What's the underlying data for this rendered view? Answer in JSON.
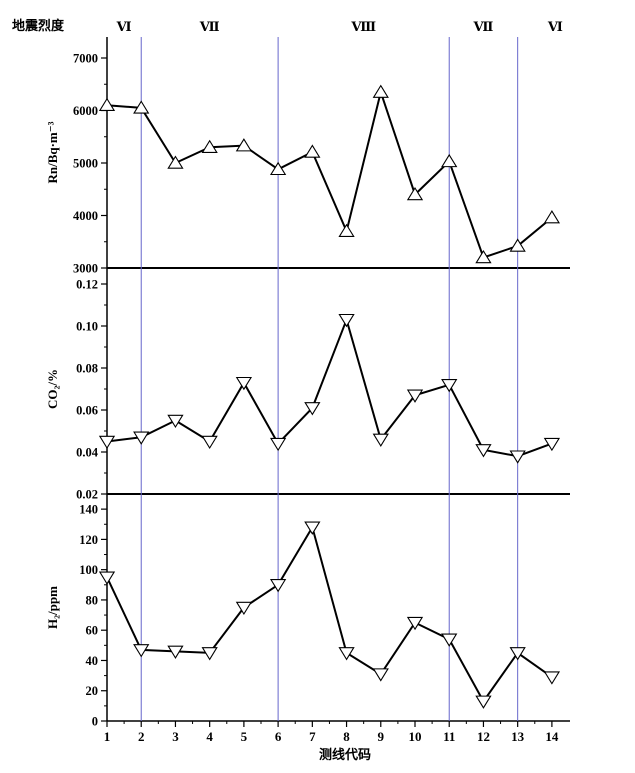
{
  "chart_data": [
    {
      "type": "line",
      "panel": "top",
      "ylabel": "Rn/Bq·m⁻³",
      "ylim": [
        3000,
        7400
      ],
      "yticks": [
        3000,
        4000,
        5000,
        6000,
        7000
      ],
      "marker": "triangle-up",
      "x": [
        1,
        2,
        3,
        4,
        5,
        6,
        7,
        8,
        9,
        10,
        11,
        12,
        13,
        14
      ],
      "values": [
        6100,
        6050,
        5000,
        5300,
        5330,
        4880,
        5210,
        3700,
        6350,
        4400,
        5030,
        3200,
        3420,
        3960
      ]
    },
    {
      "type": "line",
      "panel": "middle",
      "ylabel": "CO₂/%",
      "ylim": [
        0.02,
        0.12
      ],
      "yticks": [
        "0.02",
        "0.04",
        "0.06",
        "0.08",
        "0.10",
        "0.12"
      ],
      "marker": "triangle-down",
      "x": [
        1,
        2,
        3,
        4,
        5,
        6,
        7,
        8,
        9,
        10,
        11,
        12,
        13,
        14
      ],
      "values": [
        0.045,
        0.047,
        0.055,
        0.045,
        0.073,
        0.044,
        0.061,
        0.103,
        0.046,
        0.067,
        0.072,
        0.041,
        0.038,
        0.044
      ]
    },
    {
      "type": "line",
      "panel": "bottom",
      "ylabel": "H₂/ppm",
      "ylim": [
        0,
        150
      ],
      "yticks": [
        0,
        20,
        40,
        60,
        80,
        100,
        120,
        140
      ],
      "marker": "triangle-down",
      "x": [
        1,
        2,
        3,
        4,
        5,
        6,
        7,
        8,
        9,
        10,
        11,
        12,
        13,
        14
      ],
      "values": [
        95,
        47,
        46,
        45,
        75,
        90,
        128,
        45,
        31,
        65,
        54,
        13,
        45,
        29
      ]
    }
  ],
  "x_axis": {
    "label": "测线代码",
    "ticks": [
      1,
      2,
      3,
      4,
      5,
      6,
      7,
      8,
      9,
      10,
      11,
      12,
      13,
      14
    ],
    "xlim": [
      1,
      14.5
    ]
  },
  "intensity": {
    "label": "地震烈度",
    "zones": [
      {
        "text": "Ⅵ",
        "x": 1.5
      },
      {
        "text": "Ⅶ",
        "x": 4
      },
      {
        "text": "Ⅷ",
        "x": 8.5
      },
      {
        "text": "Ⅶ",
        "x": 12
      },
      {
        "text": "Ⅵ",
        "x": 14.1
      }
    ],
    "boundaries": [
      2,
      6,
      11,
      13
    ]
  },
  "colors": {
    "line": "#000000",
    "boundary": "#6666cc",
    "marker_fill": "#ffffff"
  }
}
